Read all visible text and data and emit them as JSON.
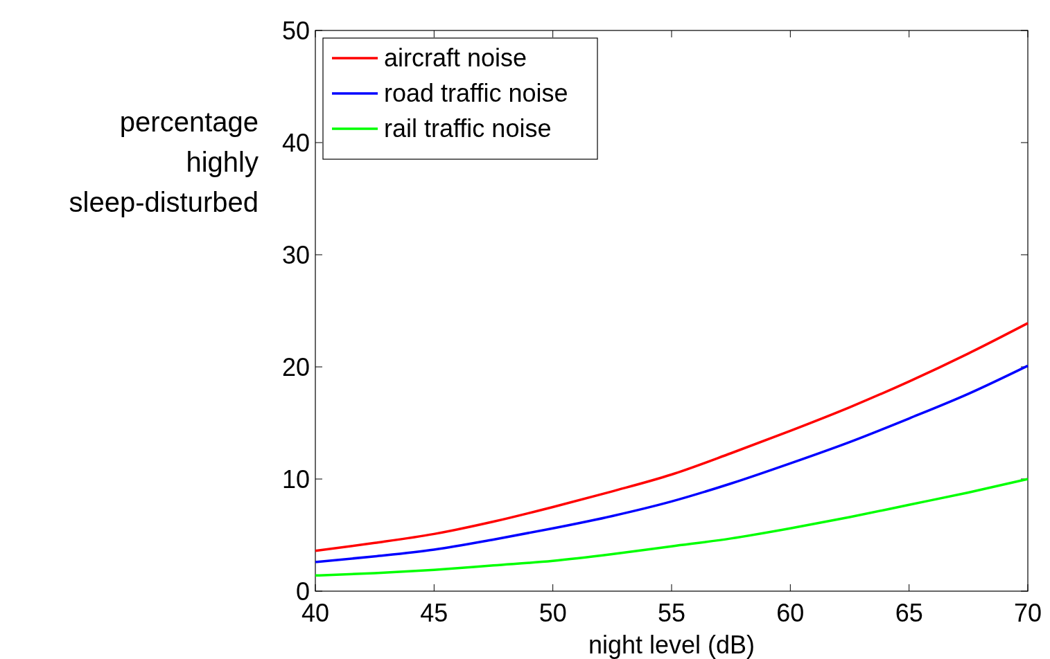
{
  "chart_data": {
    "type": "line",
    "xlabel": "night level (dB)",
    "ylabel": "percentage highly sleep-disturbed",
    "x": [
      40,
      42.5,
      45,
      47.5,
      50,
      52.5,
      55,
      57.5,
      60,
      62.5,
      65,
      67.5,
      70
    ],
    "series": [
      {
        "name": "aircraft noise",
        "color": "#ff0000",
        "values": [
          3.6,
          4.3,
          5.1,
          6.2,
          7.5,
          8.9,
          10.4,
          12.3,
          14.3,
          16.4,
          18.7,
          21.2,
          23.9
        ]
      },
      {
        "name": "road traffic noise",
        "color": "#0000ff",
        "values": [
          2.6,
          3.1,
          3.7,
          4.6,
          5.6,
          6.7,
          8.0,
          9.6,
          11.4,
          13.3,
          15.4,
          17.6,
          20.1
        ]
      },
      {
        "name": "rail traffic noise",
        "color": "#00ff00",
        "values": [
          1.4,
          1.6,
          1.9,
          2.3,
          2.7,
          3.3,
          4.0,
          4.7,
          5.6,
          6.6,
          7.7,
          8.8,
          10.0
        ]
      }
    ],
    "xlim": [
      40,
      70
    ],
    "ylim": [
      0,
      50
    ],
    "xticks": [
      40,
      45,
      50,
      55,
      60,
      65,
      70
    ],
    "yticks": [
      0,
      10,
      20,
      30,
      40,
      50
    ],
    "grid": false,
    "legend": "top left",
    "line_style": "solid",
    "marker": "none"
  }
}
